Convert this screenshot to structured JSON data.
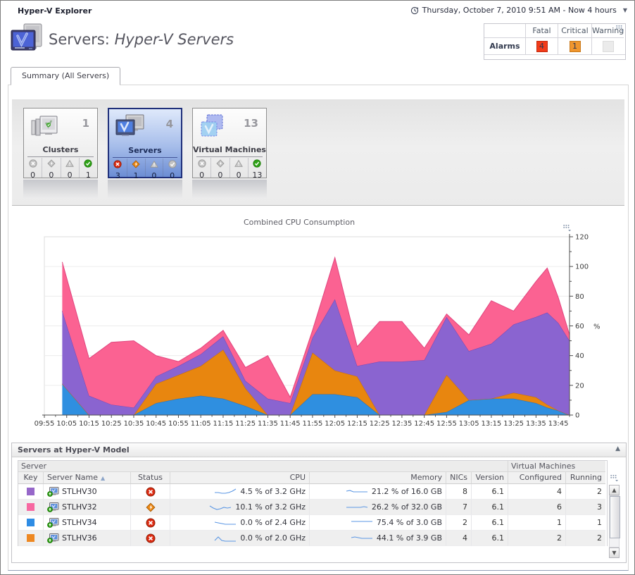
{
  "topbar": {
    "title": "Hyper-V Explorer",
    "time_range": "Thursday, October 7, 2010 9:51 AM - Now 4 hours"
  },
  "header": {
    "title_prefix": "Servers: ",
    "title_emphasis": "Hyper-V Servers"
  },
  "alarms": {
    "row_label": "Alarms",
    "columns": [
      "Fatal",
      "Critical",
      "Warning"
    ],
    "fatal_count": "4",
    "critical_count": "1",
    "warning_count": "",
    "fatal_color": "#f23b19",
    "fatal_border": "#c32b10",
    "critical_color": "#f0962e",
    "critical_border": "#c87a1d",
    "warning_color": "#ebebeb",
    "warning_border": "#dcdcdc"
  },
  "tabs": [
    {
      "label": "Summary (All Servers)",
      "selected": true
    }
  ],
  "tiles": [
    {
      "name": "Clusters",
      "count": "1",
      "icon": "clusters-icon",
      "selected": false,
      "statuses": [
        {
          "type": "fatal",
          "count": "0",
          "active": false
        },
        {
          "type": "critical",
          "count": "0",
          "active": false
        },
        {
          "type": "warning",
          "count": "0",
          "active": false
        },
        {
          "type": "normal",
          "count": "1",
          "active": true
        }
      ]
    },
    {
      "name": "Servers",
      "count": "4",
      "icon": "servers-icon",
      "selected": true,
      "statuses": [
        {
          "type": "fatal",
          "count": "3",
          "active": true
        },
        {
          "type": "critical",
          "count": "1",
          "active": true
        },
        {
          "type": "warning",
          "count": "0",
          "active": false
        },
        {
          "type": "normal",
          "count": "0",
          "active": false
        }
      ]
    },
    {
      "name": "Virtual Machines",
      "count": "13",
      "icon": "virtual-machines-icon",
      "selected": false,
      "statuses": [
        {
          "type": "fatal",
          "count": "0",
          "active": false
        },
        {
          "type": "critical",
          "count": "0",
          "active": false
        },
        {
          "type": "warning",
          "count": "0",
          "active": false
        },
        {
          "type": "normal",
          "count": "13",
          "active": true
        }
      ]
    }
  ],
  "chart_data": {
    "type": "area",
    "stacked": true,
    "title": "Combined CPU Consumption",
    "ylabel": "%",
    "ylim": [
      0,
      120
    ],
    "y_ticks": [
      0,
      20,
      40,
      60,
      80,
      100,
      120
    ],
    "grid": true,
    "legend_position": "none",
    "x_axis_labels": [
      "09:55",
      "10:05",
      "10:15",
      "10:25",
      "10:35",
      "10:45",
      "10:55",
      "11:05",
      "11:15",
      "11:25",
      "11:35",
      "11:45",
      "11:55",
      "12:05",
      "12:15",
      "12:25",
      "12:35",
      "12:45",
      "12:55",
      "13:05",
      "13:15",
      "13:25",
      "13:35",
      "13:45"
    ],
    "x_minutes": [
      8,
      20,
      30,
      40,
      50,
      60,
      70,
      80,
      90,
      100,
      110,
      120,
      130,
      140,
      150,
      160,
      170,
      180,
      190,
      200,
      210,
      220,
      225,
      230,
      235
    ],
    "series": [
      {
        "name": "STLHV34",
        "color": "#2f8fe0",
        "stroke": "#1e6fbe",
        "values": [
          21,
          0,
          0,
          0,
          8,
          11,
          13,
          11,
          6,
          0,
          0,
          14,
          14,
          12,
          0,
          0,
          0,
          2,
          10,
          11,
          11,
          8,
          5,
          3,
          0
        ]
      },
      {
        "name": "STLHV36",
        "color": "#e8860f",
        "stroke": "#c26b0b",
        "values": [
          0,
          0,
          0,
          0,
          13,
          16,
          20,
          33,
          12,
          0,
          0,
          28,
          16,
          14,
          0,
          0,
          0,
          25,
          0,
          0,
          4,
          4,
          2,
          0,
          0
        ]
      },
      {
        "name": "STLHV30",
        "color": "#8a64d0",
        "stroke": "#6f48b8",
        "values": [
          49,
          13,
          7,
          5,
          5,
          6,
          8,
          9,
          5,
          11,
          8,
          10,
          48,
          7,
          36,
          36,
          37,
          39,
          33,
          37,
          46,
          54,
          62,
          59,
          50
        ]
      },
      {
        "name": "STLHV32",
        "color": "#fb6292",
        "stroke": "#e0457e",
        "values": [
          33,
          25,
          42,
          45,
          14,
          3,
          4,
          4,
          9,
          29,
          4,
          5,
          28,
          13,
          27,
          27,
          8,
          2,
          11,
          29,
          9,
          24,
          30,
          17,
          4
        ]
      }
    ]
  },
  "table": {
    "panel_title": "Servers at Hyper-V Model",
    "group_headers": {
      "server": "Server",
      "vm": "Virtual Machines"
    },
    "columns": [
      "Key",
      "Server Name",
      "Status",
      "CPU",
      "Memory",
      "NICs",
      "Version",
      "Configured",
      "Running"
    ],
    "sort_column": "Server Name",
    "rows": [
      {
        "key_color": "#9667c9",
        "name": "STLHV30",
        "status": "fatal",
        "cpu": "4.5 % of 3.2 GHz",
        "memory": "21.2 % of 16.0 GB",
        "nics": "8",
        "version": "6.1",
        "configured": "4",
        "running": "2",
        "cpu_spark": [
          4,
          4,
          3,
          3,
          4,
          6,
          9
        ],
        "mem_spark": [
          6,
          7,
          5,
          5,
          5,
          5,
          5
        ]
      },
      {
        "key_color": "#f768a1",
        "name": "STLHV32",
        "status": "critical",
        "cpu": "10.1 % of 3.2 GHz",
        "memory": "26.2 % of 32.0 GB",
        "nics": "7",
        "version": "6.1",
        "configured": "6",
        "running": "3",
        "cpu_spark": [
          7,
          4,
          2,
          3,
          5,
          4,
          5
        ],
        "mem_spark": [
          5,
          5,
          5,
          5,
          5,
          6,
          5
        ]
      },
      {
        "key_color": "#2e8ce4",
        "name": "STLHV34",
        "status": "fatal",
        "cpu": "0.0 % of 2.4 GHz",
        "memory": "75.4 % of 3.0 GB",
        "nics": "2",
        "version": "6.1",
        "configured": "1",
        "running": "1",
        "cpu_spark": [
          6,
          5,
          4,
          3,
          3,
          3,
          3
        ],
        "mem_spark": [
          7,
          7,
          7,
          7,
          7,
          7,
          7
        ]
      },
      {
        "key_color": "#ee8822",
        "name": "STLHV36",
        "status": "fatal",
        "cpu": "0.0 % of 2.0 GHz",
        "memory": "44.1 % of 3.9 GB",
        "nics": "4",
        "version": "6.1",
        "configured": "2",
        "running": "2",
        "cpu_spark": [
          2,
          7,
          2,
          1,
          1,
          1,
          1
        ],
        "mem_spark": [
          6,
          7,
          6,
          5,
          5,
          5,
          5
        ]
      }
    ]
  }
}
